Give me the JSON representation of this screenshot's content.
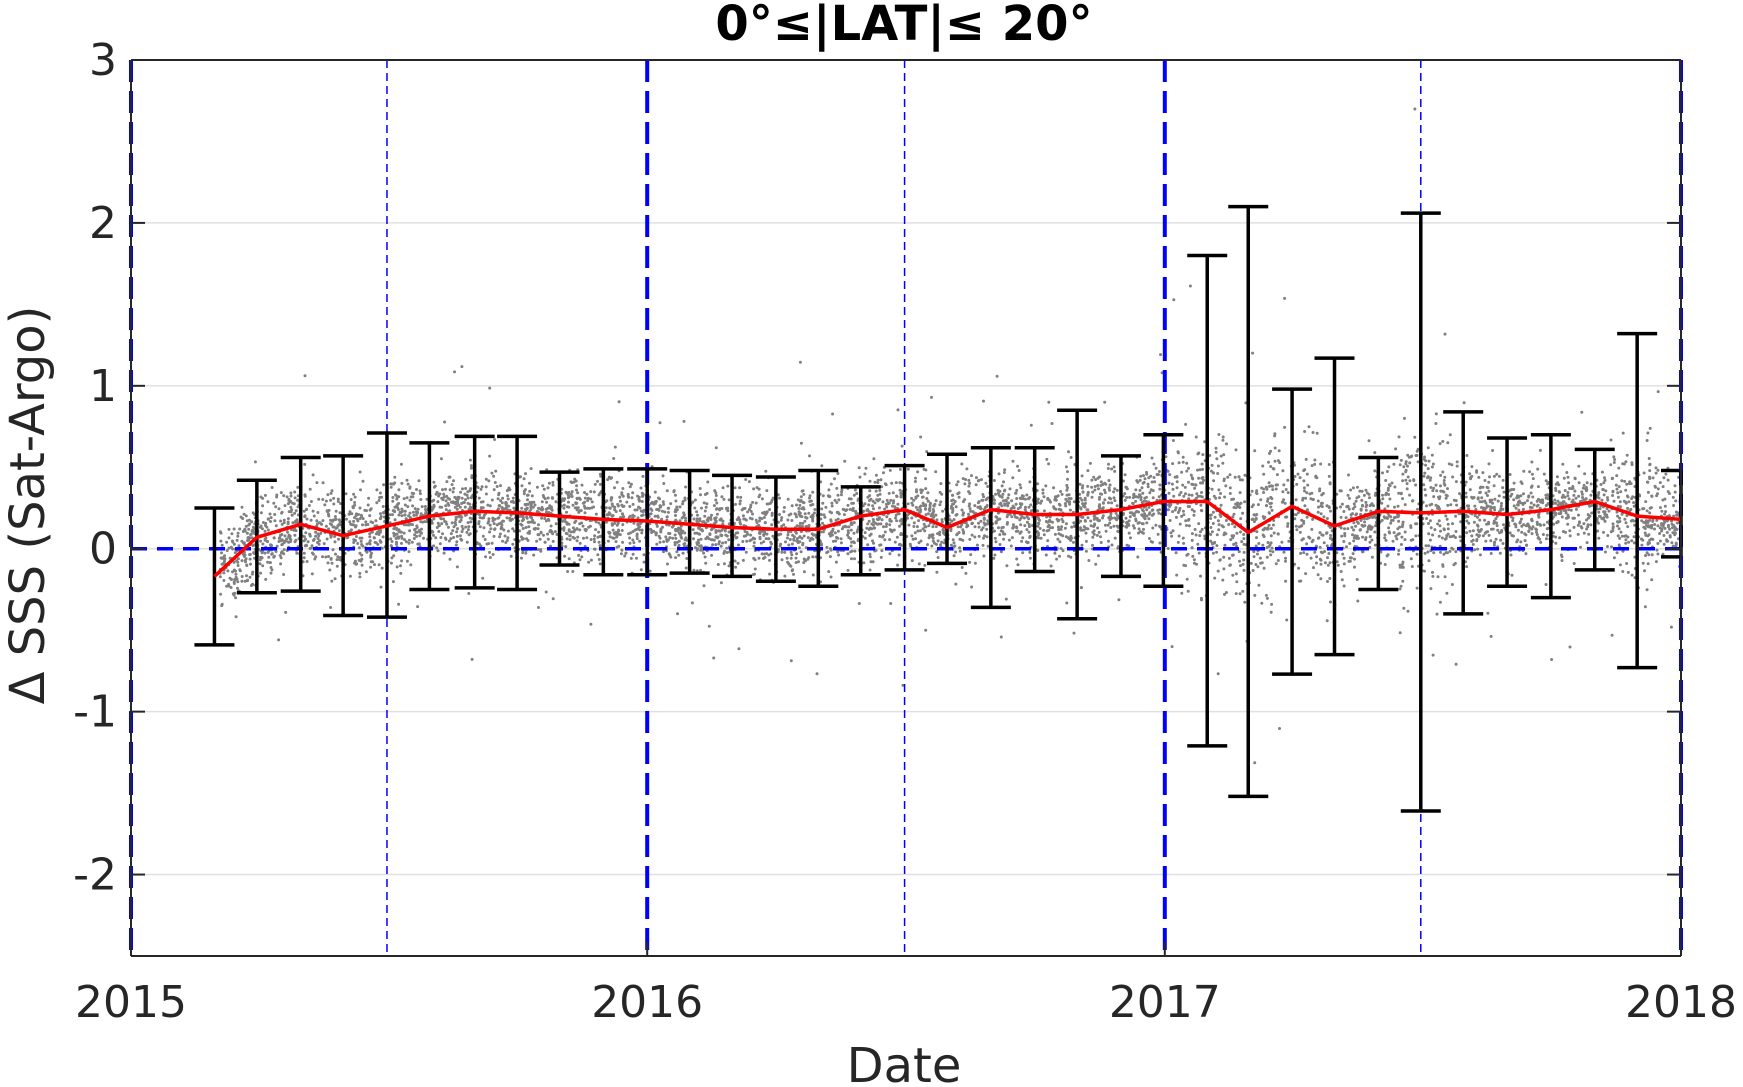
{
  "chart_data": {
    "type": "scatter",
    "title": "0°≤|LAT|≤ 20°",
    "xlabel": "Date",
    "ylabel": "Δ SSS (Sat-Argo)",
    "xlim": [
      "2015-01-01",
      "2018-01-01"
    ],
    "ylim": [
      -2.5,
      3
    ],
    "x_ticks": [
      "2015",
      "2016",
      "2017",
      "2018"
    ],
    "y_ticks": [
      -2,
      -1,
      0,
      1,
      2,
      3
    ],
    "grid": "horizontal",
    "reference_lines": {
      "horizontal_dashed": 0,
      "year_boundaries_thick_dashed": [
        "2015-01-01",
        "2016-01-01",
        "2017-01-01",
        "2018-01-01"
      ],
      "mid_year_thin_dashed": [
        "2015-07-01",
        "2016-07-01",
        "2017-07-01"
      ]
    },
    "colors": {
      "mean_line": "#ff0000",
      "error_bars": "#000000",
      "scatter_points": "#808080",
      "reference_lines": "#0000ff",
      "grid": "#e0e0e0"
    },
    "series": [
      {
        "type": "line_with_error_bars",
        "x": [
          "2015-03-01",
          "2015-03-31",
          "2015-05-01",
          "2015-05-31",
          "2015-07-01",
          "2015-07-31",
          "2015-09-01",
          "2015-10-01",
          "2015-10-31",
          "2015-12-01",
          "2016-01-01",
          "2016-01-31",
          "2016-03-01",
          "2016-04-01",
          "2016-05-01",
          "2016-05-31",
          "2016-07-01",
          "2016-07-31",
          "2016-08-31",
          "2016-10-01",
          "2016-10-31",
          "2016-12-01",
          "2016-12-31",
          "2017-01-31",
          "2017-03-01",
          "2017-04-01",
          "2017-05-01",
          "2017-06-01",
          "2017-07-01",
          "2017-07-31",
          "2017-08-31",
          "2017-10-01",
          "2017-11-01",
          "2017-12-01",
          "2018-01-01"
        ],
        "mean": [
          -0.17,
          0.07,
          0.15,
          0.08,
          0.14,
          0.2,
          0.23,
          0.22,
          0.2,
          0.18,
          0.17,
          0.15,
          0.13,
          0.12,
          0.12,
          0.2,
          0.24,
          0.13,
          0.24,
          0.21,
          0.21,
          0.24,
          0.29,
          0.29,
          0.1,
          0.26,
          0.14,
          0.23,
          0.22,
          0.23,
          0.21,
          0.24,
          0.29,
          0.2,
          0.18
        ],
        "upper": [
          0.25,
          0.42,
          0.56,
          0.57,
          0.71,
          0.65,
          0.69,
          0.69,
          0.47,
          0.49,
          0.49,
          0.48,
          0.45,
          0.44,
          0.48,
          0.38,
          0.51,
          0.58,
          0.62,
          0.62,
          0.85,
          0.57,
          0.7,
          1.8,
          2.1,
          0.98,
          1.17,
          0.56,
          2.06,
          0.84,
          0.68,
          0.7,
          0.61,
          1.32,
          0.48
        ],
        "lower": [
          -0.59,
          -0.27,
          -0.26,
          -0.41,
          -0.42,
          -0.25,
          -0.24,
          -0.25,
          -0.1,
          -0.16,
          -0.16,
          -0.15,
          -0.17,
          -0.2,
          -0.23,
          -0.16,
          -0.13,
          -0.09,
          -0.36,
          -0.14,
          -0.43,
          -0.17,
          -0.23,
          -1.21,
          -1.52,
          -0.77,
          -0.65,
          -0.25,
          -1.61,
          -0.4,
          -0.23,
          -0.3,
          -0.13,
          -0.73,
          -0.05
        ]
      }
    ],
    "scatter_points_description_count": 6000
  }
}
